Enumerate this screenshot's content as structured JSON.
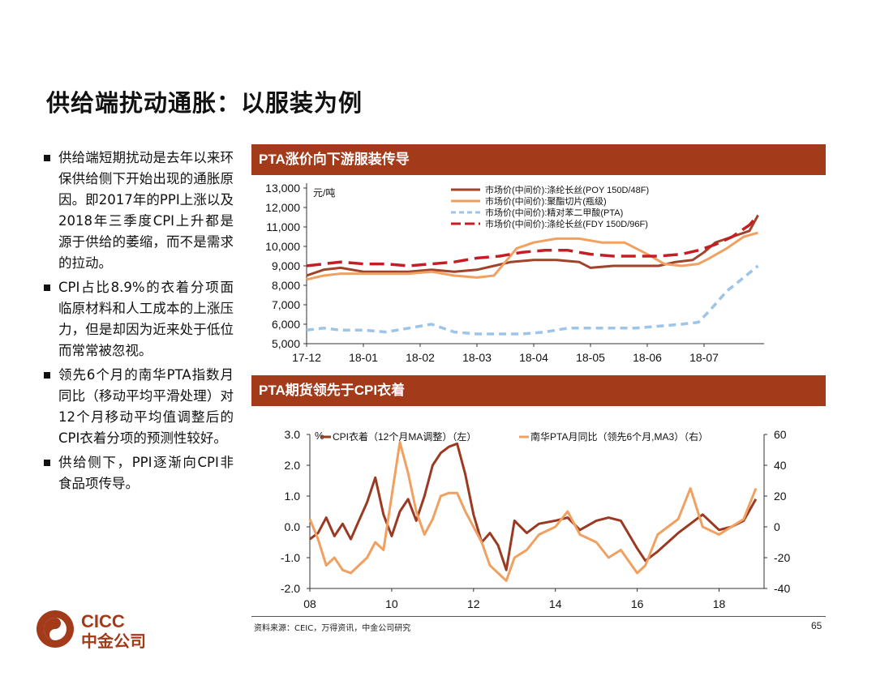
{
  "slide": {
    "title": "供给端扰动通胀：以服装为例",
    "bullets": [
      "供给端短期扰动是去年以来环保供给侧下开始出现的通胀原因。即2017年的PPI上涨以及2018年三季度CPI上升都是源于供给的萎缩，而不是需求的拉动。",
      "CPI占比8.9%的衣着分项面临原材料和人工成本的上涨压力，但是却因为近来处于低位而常常被忽视。",
      "领先6个月的南华PTA指数月同比（移动平均平滑处理）对12个月移动平均值调整后的CPI衣着分项的预测性较好。",
      "供给侧下，PPI逐渐向CPI非食品项传导。"
    ],
    "source": "资料来源：CEIC，万得资讯，中金公司研究",
    "page_number": "65",
    "logo": {
      "en": "CICC",
      "cn": "中金公司",
      "brand_color": "#a33a1a"
    }
  },
  "chart_data": [
    {
      "type": "line",
      "title": "PTA涨价向下游服装传导",
      "unit_label": "元/吨",
      "ylim": [
        5000,
        13000
      ],
      "y_ticks": [
        "13,000",
        "12,000",
        "11,000",
        "10,000",
        "9,000",
        "8,000",
        "7,000",
        "6,000",
        "5,000"
      ],
      "x_ticks": [
        "17-12",
        "18-01",
        "18-02",
        "18-03",
        "18-04",
        "18-05",
        "18-06",
        "18-07"
      ],
      "x_ticks_pos": [
        0,
        1,
        2,
        3,
        4,
        5,
        6,
        7
      ],
      "xlim": [
        0,
        8.0
      ],
      "legend_position": "top-right",
      "series": [
        {
          "name": "市场价(中间价):涤纶长丝(POY 150D/48F)",
          "color": "#a0432a",
          "style": "solid",
          "x": [
            0,
            0.3,
            0.6,
            1,
            1.4,
            1.8,
            2.2,
            2.6,
            3,
            3.3,
            3.6,
            4,
            4.4,
            4.8,
            5,
            5.4,
            5.8,
            6.2,
            6.5,
            6.8,
            7,
            7.2,
            7.5,
            7.8,
            7.95
          ],
          "values": [
            8500,
            8800,
            8900,
            8700,
            8700,
            8700,
            8800,
            8700,
            8800,
            9000,
            9200,
            9300,
            9300,
            9200,
            8900,
            9000,
            9000,
            9000,
            9200,
            9300,
            9700,
            10200,
            10500,
            10800,
            11600
          ]
        },
        {
          "name": "市场价(中间价):聚酯切片(瓶级)",
          "color": "#f0a060",
          "style": "solid",
          "x": [
            0,
            0.3,
            0.6,
            1,
            1.4,
            1.8,
            2.2,
            2.6,
            3,
            3.3,
            3.5,
            3.7,
            4,
            4.4,
            4.8,
            5.2,
            5.6,
            6,
            6.3,
            6.6,
            6.9,
            7.1,
            7.4,
            7.7,
            7.95
          ],
          "values": [
            8300,
            8500,
            8600,
            8600,
            8600,
            8600,
            8700,
            8500,
            8400,
            8500,
            9200,
            9900,
            10200,
            10400,
            10400,
            10200,
            10200,
            9600,
            9100,
            9000,
            9100,
            9400,
            9900,
            10500,
            10700
          ]
        },
        {
          "name": "市场价(中间价):精对苯二甲酸(PTA)",
          "color": "#9ec4e8",
          "style": "dashed",
          "x": [
            0,
            0.3,
            0.6,
            1,
            1.4,
            1.8,
            2.2,
            2.6,
            3,
            3.4,
            3.8,
            4.2,
            4.6,
            5,
            5.4,
            5.8,
            6.2,
            6.6,
            6.9,
            7.1,
            7.4,
            7.7,
            7.95
          ],
          "values": [
            5700,
            5800,
            5700,
            5700,
            5600,
            5800,
            6000,
            5600,
            5500,
            5500,
            5500,
            5600,
            5800,
            5800,
            5800,
            5800,
            5900,
            6000,
            6100,
            6700,
            7700,
            8400,
            9000
          ]
        },
        {
          "name": "市场价(中间价):涤纶长丝(FDY 150D/96F)",
          "color": "#c41e24",
          "style": "longdash",
          "x": [
            0,
            0.3,
            0.6,
            1,
            1.4,
            1.8,
            2.2,
            2.6,
            3,
            3.4,
            3.8,
            4.2,
            4.6,
            5,
            5.4,
            5.8,
            6.2,
            6.6,
            6.9,
            7.2,
            7.5,
            7.8,
            7.95
          ],
          "values": [
            9000,
            9100,
            9200,
            9100,
            9100,
            9000,
            9100,
            9200,
            9400,
            9500,
            9700,
            9800,
            9800,
            9600,
            9500,
            9500,
            9500,
            9600,
            9800,
            10100,
            10500,
            11100,
            11600
          ]
        }
      ]
    },
    {
      "type": "line",
      "title": "PTA期货领先于CPI衣着",
      "left_unit": "%",
      "ylim_left": [
        -2.0,
        3.0
      ],
      "ylim_right": [
        -40,
        60
      ],
      "y_ticks_left": [
        "3.0",
        "2.0",
        "1.0",
        "0.0",
        "-1.0",
        "-2.0"
      ],
      "y_ticks_right": [
        "60",
        "40",
        "20",
        "0",
        "-20",
        "-40"
      ],
      "x_ticks": [
        "08",
        "10",
        "12",
        "14",
        "16",
        "18"
      ],
      "x_ticks_pos": [
        2008,
        2010,
        2012,
        2014,
        2016,
        2018
      ],
      "xlim": [
        2008,
        2019.1
      ],
      "series": [
        {
          "name": "CPI衣着（12个月MA调整）（左）",
          "color": "#9a3a22",
          "axis": "left",
          "x": [
            2008,
            2008.2,
            2008.4,
            2008.6,
            2008.8,
            2009,
            2009.2,
            2009.4,
            2009.6,
            2009.8,
            2010,
            2010.2,
            2010.4,
            2010.6,
            2010.8,
            2011,
            2011.2,
            2011.4,
            2011.6,
            2011.8,
            2012,
            2012.2,
            2012.4,
            2012.6,
            2012.8,
            2013,
            2013.3,
            2013.6,
            2014,
            2014.3,
            2014.6,
            2015,
            2015.3,
            2015.6,
            2016,
            2016.2,
            2016.5,
            2017,
            2017.3,
            2017.6,
            2018,
            2018.3,
            2018.6,
            2018.9
          ],
          "values": [
            -0.4,
            -0.2,
            0.3,
            -0.3,
            0.1,
            -0.4,
            0.2,
            0.8,
            1.6,
            0.4,
            -0.3,
            0.5,
            0.9,
            0.2,
            1.0,
            2.0,
            2.4,
            2.6,
            2.7,
            1.7,
            0.4,
            -0.5,
            -0.2,
            -0.6,
            -1.4,
            0.2,
            -0.2,
            0.1,
            0.2,
            0.3,
            -0.1,
            0.2,
            0.3,
            0.2,
            -0.7,
            -1.1,
            -0.8,
            -0.2,
            0.1,
            0.4,
            -0.1,
            0.0,
            0.2,
            0.9
          ]
        },
        {
          "name": "南华PTA月同比（领先6个月,MA3）（右）",
          "color": "#f0a060",
          "axis": "right",
          "x": [
            2008,
            2008.2,
            2008.4,
            2008.6,
            2008.8,
            2009,
            2009.2,
            2009.4,
            2009.6,
            2009.8,
            2010,
            2010.2,
            2010.4,
            2010.6,
            2010.8,
            2011,
            2011.2,
            2011.4,
            2011.6,
            2011.8,
            2012,
            2012.2,
            2012.4,
            2012.6,
            2012.8,
            2013,
            2013.3,
            2013.6,
            2014,
            2014.3,
            2014.6,
            2015,
            2015.3,
            2015.6,
            2016,
            2016.2,
            2016.5,
            2017,
            2017.3,
            2017.6,
            2018,
            2018.3,
            2018.6,
            2018.9
          ],
          "values": [
            5,
            -8,
            -25,
            -20,
            -28,
            -30,
            -25,
            -20,
            -10,
            -15,
            20,
            55,
            35,
            10,
            -5,
            5,
            20,
            22,
            22,
            10,
            0,
            -10,
            -25,
            -30,
            -35,
            -20,
            -15,
            -5,
            0,
            10,
            -5,
            -10,
            -20,
            -15,
            -30,
            -25,
            -5,
            5,
            25,
            0,
            -5,
            0,
            5,
            25
          ]
        }
      ]
    }
  ]
}
